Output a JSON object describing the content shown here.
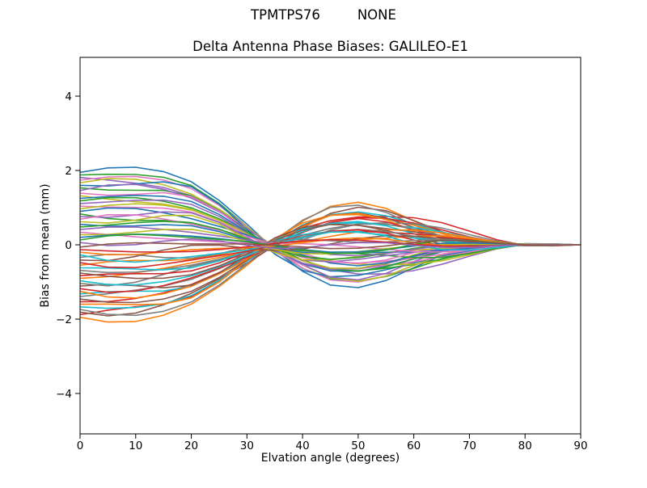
{
  "header": {
    "title_left": "TPMTPS76",
    "title_right": "NONE"
  },
  "colors": {
    "background": "#ffffff",
    "axis": "#000000",
    "text": "#000000"
  },
  "chart_data": {
    "type": "line",
    "title": "Delta Antenna Phase Biases: GALILEO-E1",
    "xlabel": "Elvation angle (degrees)",
    "ylabel": "Bias from mean (mm)",
    "xlim": [
      0,
      90
    ],
    "ylim": [
      -5.1,
      5.1
    ],
    "xticks": [
      0,
      10,
      20,
      30,
      40,
      50,
      60,
      70,
      80,
      90
    ],
    "xtick_labels": [
      "0",
      "10",
      "20",
      "30",
      "40",
      "50",
      "60",
      "70",
      "80",
      "90"
    ],
    "yticks": [
      -4,
      -2,
      0,
      2,
      4
    ],
    "ytick_labels": [
      "−4",
      "−2",
      "0",
      "2",
      "4"
    ],
    "grid": false,
    "legend": "none",
    "n_series": 56,
    "unit": "mm",
    "x": [
      0,
      5,
      10,
      15,
      20,
      25,
      30,
      35,
      40,
      45,
      50,
      55,
      60,
      65,
      70,
      75,
      80,
      85,
      90
    ],
    "convergence": "every series equals 0 mm at 90 degrees elevation",
    "envelope": {
      "at_0deg": [
        -1.95,
        1.95
      ],
      "at_20deg": [
        -1.9,
        1.9
      ],
      "zero_crossing_band_deg": [
        22,
        35
      ],
      "at_45deg": [
        -1.15,
        0.9
      ],
      "at_70deg": [
        -0.3,
        0.35
      ],
      "at_90deg": [
        0,
        0
      ]
    },
    "series_model": "y[k] = a*F[k] + b*G[k] + c*H[k] over x[k]; a = bias at 0 deg (mm)",
    "basis": {
      "F": [
        1.0,
        1.01,
        0.99,
        0.93,
        0.8,
        0.56,
        0.26,
        -0.05,
        -0.3,
        -0.46,
        -0.51,
        -0.46,
        -0.35,
        -0.22,
        -0.11,
        -0.03,
        0.01,
        0.01,
        0.0
      ],
      "G": [
        0.0,
        0.06,
        0.14,
        0.2,
        0.22,
        0.16,
        0.04,
        -0.1,
        -0.18,
        -0.19,
        -0.12,
        -0.02,
        0.08,
        0.13,
        0.1,
        0.05,
        0.01,
        0.0,
        0.0
      ],
      "H": [
        0.0,
        -0.09,
        -0.06,
        0.05,
        0.12,
        0.08,
        -0.03,
        -0.1,
        -0.07,
        0.03,
        0.1,
        0.09,
        0.01,
        -0.06,
        -0.07,
        -0.03,
        0.01,
        0.01,
        0.0
      ]
    },
    "series_format": [
      "a_bias_at_0deg_mm",
      "b_wiggle_coeff",
      "c_wiggle_coeff"
    ],
    "series": [
      [
        1.95,
        0.9,
        -0.5
      ],
      [
        -1.95,
        -0.6,
        0.8
      ],
      [
        1.88,
        0.3,
        0.2
      ],
      [
        -1.88,
        1.0,
        -0.9
      ],
      [
        1.81,
        -0.8,
        0.4
      ],
      [
        -1.81,
        0.1,
        1.0
      ],
      [
        1.74,
        0.7,
        -0.3
      ],
      [
        -1.74,
        -1.0,
        0.6
      ],
      [
        1.67,
        0.5,
        -0.7
      ],
      [
        -1.67,
        -0.2,
        0.1
      ],
      [
        1.6,
        0.8,
        0.9
      ],
      [
        -1.6,
        -0.4,
        -0.5
      ],
      [
        1.53,
        0.0,
        0.8
      ],
      [
        -1.53,
        0.6,
        0.2
      ],
      [
        1.46,
        0.9,
        -0.9
      ],
      [
        -1.46,
        -0.6,
        0.4
      ],
      [
        1.39,
        0.3,
        1.0
      ],
      [
        -1.39,
        1.0,
        -0.3
      ],
      [
        1.32,
        -0.8,
        0.6
      ],
      [
        -1.32,
        0.1,
        -0.7
      ],
      [
        1.25,
        0.7,
        0.1
      ],
      [
        -1.25,
        -1.0,
        0.9
      ],
      [
        1.18,
        0.5,
        -0.5
      ],
      [
        -1.18,
        -0.2,
        0.8
      ],
      [
        1.11,
        0.8,
        0.2
      ],
      [
        -1.11,
        -0.4,
        -0.9
      ],
      [
        1.04,
        0.0,
        0.4
      ],
      [
        -1.04,
        0.6,
        1.0
      ],
      [
        0.97,
        0.9,
        -0.3
      ],
      [
        -0.97,
        -0.6,
        0.6
      ],
      [
        0.9,
        0.3,
        -0.7
      ],
      [
        -0.9,
        1.0,
        0.1
      ],
      [
        0.83,
        -0.8,
        0.9
      ],
      [
        -0.83,
        0.1,
        -0.5
      ],
      [
        0.76,
        0.7,
        0.8
      ],
      [
        -0.76,
        -1.0,
        0.2
      ],
      [
        0.69,
        0.5,
        -0.9
      ],
      [
        -0.69,
        -0.2,
        0.4
      ],
      [
        0.62,
        0.8,
        1.0
      ],
      [
        -0.62,
        -0.4,
        -0.3
      ],
      [
        0.55,
        0.0,
        0.6
      ],
      [
        -0.55,
        0.6,
        -0.7
      ],
      [
        0.48,
        0.9,
        0.1
      ],
      [
        -0.48,
        -0.6,
        0.9
      ],
      [
        0.41,
        0.3,
        -0.5
      ],
      [
        -0.41,
        1.0,
        0.8
      ],
      [
        0.34,
        -0.8,
        0.2
      ],
      [
        -0.34,
        0.1,
        -0.9
      ],
      [
        0.27,
        0.7,
        0.4
      ],
      [
        -0.27,
        -1.0,
        1.0
      ],
      [
        0.2,
        0.5,
        -0.3
      ],
      [
        -0.2,
        -0.2,
        0.6
      ],
      [
        0.13,
        0.8,
        -0.7
      ],
      [
        -0.13,
        -0.4,
        0.1
      ],
      [
        0.06,
        0.0,
        0.9
      ],
      [
        -0.06,
        0.6,
        -0.5
      ]
    ],
    "palette": [
      "#1f77b4",
      "#ff7f0e",
      "#2ca02c",
      "#d62728",
      "#9467bd",
      "#8c564b",
      "#e377c2",
      "#7f7f7f",
      "#bcbd22",
      "#17becf"
    ]
  }
}
